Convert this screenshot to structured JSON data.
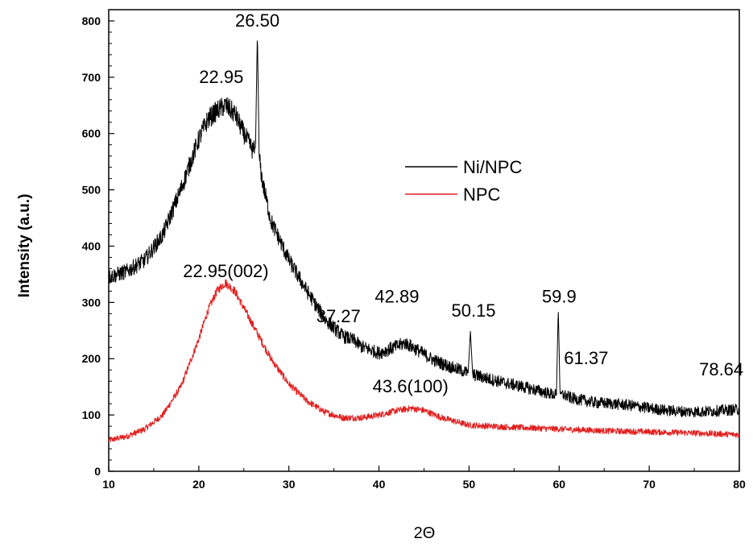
{
  "chart_data": {
    "type": "line",
    "xlabel": "2Θ",
    "ylabel": "Intensity (a.u.)",
    "xlim": [
      10,
      80
    ],
    "ylim": [
      0,
      820
    ],
    "x_ticks": [
      10,
      20,
      30,
      40,
      50,
      60,
      70,
      80
    ],
    "y_ticks": [
      0,
      100,
      200,
      300,
      400,
      500,
      600,
      700,
      800
    ],
    "grid": false,
    "legend_position": "center-right",
    "series": [
      {
        "name": "Ni/NPC",
        "color": "#000000",
        "points": [
          [
            10,
            345
          ],
          [
            12,
            355
          ],
          [
            14,
            375
          ],
          [
            16,
            420
          ],
          [
            18,
            500
          ],
          [
            20,
            590
          ],
          [
            21,
            625
          ],
          [
            22,
            640
          ],
          [
            22.95,
            650
          ],
          [
            24,
            635
          ],
          [
            25,
            600
          ],
          [
            26,
            570
          ],
          [
            26.3,
            575
          ],
          [
            26.5,
            780
          ],
          [
            26.7,
            560
          ],
          [
            27,
            520
          ],
          [
            28,
            445
          ],
          [
            30,
            375
          ],
          [
            32,
            320
          ],
          [
            34,
            270
          ],
          [
            36,
            240
          ],
          [
            37.27,
            232
          ],
          [
            38,
            222
          ],
          [
            40,
            210
          ],
          [
            42,
            222
          ],
          [
            42.89,
            228
          ],
          [
            44,
            218
          ],
          [
            46,
            198
          ],
          [
            48,
            185
          ],
          [
            49.9,
            175
          ],
          [
            50.15,
            250
          ],
          [
            50.4,
            172
          ],
          [
            52,
            165
          ],
          [
            54,
            157
          ],
          [
            56,
            150
          ],
          [
            58,
            142
          ],
          [
            59.7,
            135
          ],
          [
            59.9,
            290
          ],
          [
            60.1,
            138
          ],
          [
            61.37,
            130
          ],
          [
            62,
            128
          ],
          [
            64,
            122
          ],
          [
            66,
            120
          ],
          [
            68,
            117
          ],
          [
            70,
            112
          ],
          [
            72,
            108
          ],
          [
            74,
            106
          ],
          [
            76,
            106
          ],
          [
            78,
            108
          ],
          [
            80,
            110
          ]
        ]
      },
      {
        "name": "NPC",
        "color": "#e01e1e",
        "points": [
          [
            10,
            55
          ],
          [
            12,
            62
          ],
          [
            14,
            75
          ],
          [
            16,
            100
          ],
          [
            18,
            150
          ],
          [
            20,
            235
          ],
          [
            21,
            285
          ],
          [
            22,
            320
          ],
          [
            22.95,
            335
          ],
          [
            24,
            320
          ],
          [
            26,
            260
          ],
          [
            28,
            200
          ],
          [
            30,
            155
          ],
          [
            32,
            125
          ],
          [
            34,
            105
          ],
          [
            36,
            95
          ],
          [
            38,
            95
          ],
          [
            40,
            100
          ],
          [
            42,
            108
          ],
          [
            43.6,
            112
          ],
          [
            45,
            108
          ],
          [
            47,
            95
          ],
          [
            50,
            82
          ],
          [
            55,
            78
          ],
          [
            60,
            75
          ],
          [
            65,
            72
          ],
          [
            70,
            70
          ],
          [
            75,
            68
          ],
          [
            80,
            65
          ]
        ]
      }
    ],
    "annotations": [
      {
        "text": "26.50",
        "x": 26.5,
        "y": 790
      },
      {
        "text": "22.95",
        "x": 22.5,
        "y": 690
      },
      {
        "text": "22.95(002)",
        "x": 23.0,
        "y": 345
      },
      {
        "text": "42.89",
        "x": 42.0,
        "y": 300
      },
      {
        "text": "37.27",
        "x": 35.5,
        "y": 265
      },
      {
        "text": "50.15",
        "x": 50.5,
        "y": 275
      },
      {
        "text": "59.9",
        "x": 60.0,
        "y": 300
      },
      {
        "text": "61.37",
        "x": 63.0,
        "y": 190
      },
      {
        "text": "78.64",
        "x": 78.0,
        "y": 170
      },
      {
        "text": "43.6(100)",
        "x": 43.5,
        "y": 140
      }
    ]
  }
}
